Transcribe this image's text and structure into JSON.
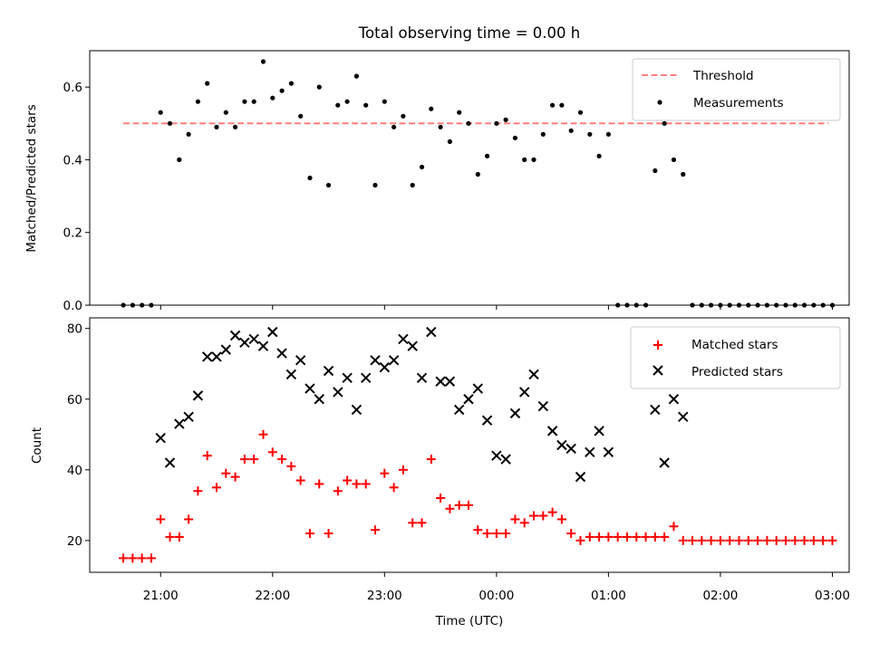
{
  "chart_data": [
    {
      "type": "scatter",
      "title": "Total observing time = 0.00 h",
      "xlabel": "",
      "ylabel": "Matched/Predicted stars",
      "ylim": [
        0,
        0.7
      ],
      "yticks": [
        "0.0",
        "0.2",
        "0.4",
        "0.6"
      ],
      "legend_position": "top-right",
      "grid": false,
      "threshold": {
        "name": "Threshold",
        "value": 0.5,
        "x_range": [
          "20:40",
          "02:58"
        ],
        "color": "#ff7f7f"
      },
      "series": [
        {
          "name": "Measurements",
          "color": "#000000",
          "x": [
            "20:40",
            "20:45",
            "20:50",
            "20:55",
            "21:00",
            "21:05",
            "21:10",
            "21:15",
            "21:20",
            "21:25",
            "21:30",
            "21:35",
            "21:40",
            "21:45",
            "21:50",
            "21:55",
            "22:00",
            "22:05",
            "22:10",
            "22:15",
            "22:20",
            "22:25",
            "22:30",
            "22:35",
            "22:40",
            "22:45",
            "22:50",
            "22:55",
            "23:00",
            "23:05",
            "23:10",
            "23:15",
            "23:20",
            "23:25",
            "23:30",
            "23:35",
            "23:40",
            "23:45",
            "23:50",
            "23:55",
            "00:00",
            "00:05",
            "00:10",
            "00:15",
            "00:20",
            "00:25",
            "00:30",
            "00:35",
            "00:40",
            "00:45",
            "00:50",
            "00:55",
            "01:00",
            "01:05",
            "01:10",
            "01:15",
            "01:20",
            "01:25",
            "01:30",
            "01:35",
            "01:40",
            "01:45",
            "01:50",
            "01:55",
            "02:00",
            "02:05",
            "02:10",
            "02:15",
            "02:20",
            "02:25",
            "02:30",
            "02:35",
            "02:40",
            "02:45",
            "02:50",
            "02:55",
            "03:00"
          ],
          "values": [
            0,
            0,
            0,
            0,
            0.53,
            0.5,
            0.4,
            0.47,
            0.56,
            0.61,
            0.49,
            0.53,
            0.49,
            0.56,
            0.56,
            0.67,
            0.57,
            0.59,
            0.61,
            0.52,
            0.35,
            0.6,
            0.33,
            0.55,
            0.56,
            0.63,
            0.55,
            0.33,
            0.56,
            0.49,
            0.52,
            0.33,
            0.38,
            0.54,
            0.49,
            0.45,
            0.53,
            0.5,
            0.36,
            0.41,
            0.5,
            0.51,
            0.46,
            0.4,
            0.4,
            0.47,
            0.55,
            0.55,
            0.48,
            0.53,
            0.47,
            0.41,
            0.47,
            0,
            0,
            0,
            0,
            0.37,
            0.5,
            0.4,
            0.36,
            0,
            0,
            0,
            0,
            0,
            0,
            0,
            0,
            0,
            0,
            0,
            0,
            0,
            0,
            0,
            0
          ]
        }
      ]
    },
    {
      "type": "scatter",
      "title": "",
      "xlabel": "Time (UTC)",
      "ylabel": "Count",
      "ylim": [
        11,
        83
      ],
      "yticks": [
        "20",
        "40",
        "60",
        "80"
      ],
      "xticks": [
        "21:00",
        "22:00",
        "23:00",
        "00:00",
        "01:00",
        "02:00",
        "03:00"
      ],
      "legend_position": "top-right",
      "grid": false,
      "series": [
        {
          "name": "Matched stars",
          "marker": "plus",
          "color": "#ff0000",
          "x": [
            "20:40",
            "20:45",
            "20:50",
            "20:55",
            "21:00",
            "21:05",
            "21:10",
            "21:15",
            "21:20",
            "21:25",
            "21:30",
            "21:35",
            "21:40",
            "21:45",
            "21:50",
            "21:55",
            "22:00",
            "22:05",
            "22:10",
            "22:15",
            "22:20",
            "22:25",
            "22:30",
            "22:35",
            "22:40",
            "22:45",
            "22:50",
            "22:55",
            "23:00",
            "23:05",
            "23:10",
            "23:15",
            "23:20",
            "23:25",
            "23:30",
            "23:35",
            "23:40",
            "23:45",
            "23:50",
            "23:55",
            "00:00",
            "00:05",
            "00:10",
            "00:15",
            "00:20",
            "00:25",
            "00:30",
            "00:35",
            "00:40",
            "00:45",
            "00:50",
            "00:55",
            "01:00",
            "01:05",
            "01:10",
            "01:15",
            "01:20",
            "01:25",
            "01:30",
            "01:35",
            "01:40",
            "01:45",
            "01:50",
            "01:55",
            "02:00",
            "02:05",
            "02:10",
            "02:15",
            "02:20",
            "02:25",
            "02:30",
            "02:35",
            "02:40",
            "02:45",
            "02:50",
            "02:55",
            "03:00"
          ],
          "values": [
            15,
            15,
            15,
            15,
            26,
            21,
            21,
            26,
            34,
            44,
            35,
            39,
            38,
            43,
            43,
            50,
            45,
            43,
            41,
            37,
            22,
            36,
            22,
            34,
            37,
            36,
            36,
            23,
            39,
            35,
            40,
            25,
            25,
            43,
            32,
            29,
            30,
            30,
            23,
            22,
            22,
            22,
            26,
            25,
            27,
            27,
            28,
            26,
            22,
            20,
            21,
            21,
            21,
            21,
            21,
            21,
            21,
            21,
            21,
            24,
            20,
            20,
            20,
            20,
            20,
            20,
            20,
            20,
            20,
            20,
            20,
            20,
            20,
            20,
            20,
            20,
            20
          ]
        },
        {
          "name": "Predicted stars",
          "marker": "x",
          "color": "#000000",
          "x": [
            "21:00",
            "21:05",
            "21:10",
            "21:15",
            "21:20",
            "21:25",
            "21:30",
            "21:35",
            "21:40",
            "21:45",
            "21:50",
            "21:55",
            "22:00",
            "22:05",
            "22:10",
            "22:15",
            "22:20",
            "22:25",
            "22:30",
            "22:35",
            "22:40",
            "22:45",
            "22:50",
            "22:55",
            "23:00",
            "23:05",
            "23:10",
            "23:15",
            "23:20",
            "23:25",
            "23:30",
            "23:35",
            "23:40",
            "23:45",
            "23:50",
            "23:55",
            "00:00",
            "00:05",
            "00:10",
            "00:15",
            "00:20",
            "00:25",
            "00:30",
            "00:35",
            "00:40",
            "00:45",
            "00:50",
            "00:55",
            "01:00",
            "01:25",
            "01:30",
            "01:35",
            "01:40"
          ],
          "values": [
            49,
            42,
            53,
            55,
            61,
            72,
            72,
            74,
            78,
            76,
            77,
            75,
            79,
            73,
            67,
            71,
            63,
            60,
            68,
            62,
            66,
            57,
            66,
            71,
            69,
            71,
            77,
            75,
            66,
            79,
            65,
            65,
            57,
            60,
            63,
            54,
            44,
            43,
            56,
            62,
            67,
            58,
            51,
            47,
            46,
            38,
            45,
            51,
            45,
            57,
            42,
            60,
            55
          ]
        }
      ]
    }
  ]
}
